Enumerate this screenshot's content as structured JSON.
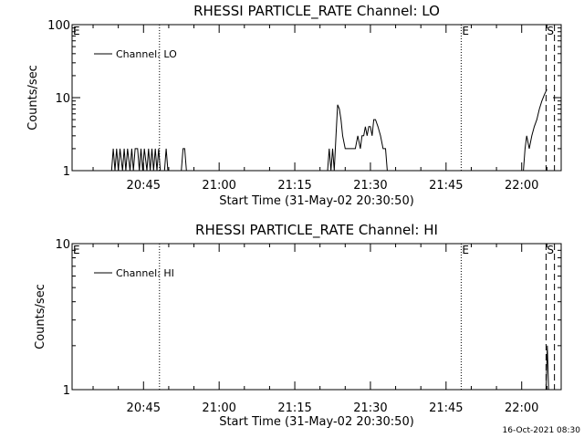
{
  "timestamp": "16-Oct-2021 08:30",
  "chart_data": [
    {
      "type": "line",
      "title": "RHESSI PARTICLE_RATE Channel: LO",
      "xlabel": "Start Time (31-May-02 20:30:50)",
      "ylabel": "Counts/sec",
      "yscale": "log",
      "ylim": [
        1,
        100
      ],
      "xlim": [
        "20:30:50",
        "22:07:50"
      ],
      "x_ticks": [
        "20:45",
        "21:00",
        "21:15",
        "21:30",
        "21:45",
        "22:00"
      ],
      "y_ticks": [
        "1",
        "10",
        "100"
      ],
      "legend": "Channel: LO",
      "legend_position": "top-left",
      "markers": [
        {
          "label": "E",
          "time": "20:30:50",
          "style": "none"
        },
        {
          "label": "",
          "time": "20:48:10",
          "style": "dotted"
        },
        {
          "label": "E",
          "time": "21:48:00",
          "style": "dotted"
        },
        {
          "label": "S",
          "time": "22:04:50",
          "style": "dashed"
        },
        {
          "label": "",
          "time": "22:06:30",
          "style": "dashed"
        }
      ],
      "series": [
        {
          "values": [
            [
              "20:38:40",
              1
            ],
            [
              "20:39:00",
              2
            ],
            [
              "20:39:20",
              1
            ],
            [
              "20:39:40",
              2
            ],
            [
              "20:40:00",
              1
            ],
            [
              "20:40:20",
              2
            ],
            [
              "20:40:50",
              1
            ],
            [
              "20:41:10",
              2
            ],
            [
              "20:41:30",
              1
            ],
            [
              "20:41:50",
              2
            ],
            [
              "20:42:20",
              1
            ],
            [
              "20:42:40",
              2
            ],
            [
              "20:43:00",
              1
            ],
            [
              "20:43:20",
              2
            ],
            [
              "20:43:50",
              2
            ],
            [
              "20:44:10",
              1
            ],
            [
              "20:44:30",
              2
            ],
            [
              "20:44:50",
              1
            ],
            [
              "20:45:10",
              2
            ],
            [
              "20:45:40",
              1
            ],
            [
              "20:46:00",
              2
            ],
            [
              "20:46:20",
              1
            ],
            [
              "20:46:40",
              2
            ],
            [
              "20:47:00",
              1
            ],
            [
              "20:47:20",
              2
            ],
            [
              "20:47:40",
              1
            ],
            [
              "20:48:00",
              2
            ],
            [
              "20:48:20",
              1
            ],
            [
              "20:49:10",
              1
            ],
            [
              "20:49:30",
              2
            ],
            [
              "20:49:50",
              1
            ],
            [
              "20:52:30",
              1
            ],
            [
              "20:52:50",
              2
            ],
            [
              "20:53:10",
              2
            ],
            [
              "20:53:30",
              1
            ],
            [
              "21:21:30",
              1
            ],
            [
              "21:21:50",
              2
            ],
            [
              "21:22:10",
              1
            ],
            [
              "21:22:30",
              2
            ],
            [
              "21:22:50",
              1
            ],
            [
              "21:23:10",
              3
            ],
            [
              "21:23:30",
              8
            ],
            [
              "21:23:50",
              7
            ],
            [
              "21:24:10",
              5
            ],
            [
              "21:24:30",
              3
            ],
            [
              "21:25:00",
              2
            ],
            [
              "21:26:00",
              2
            ],
            [
              "21:27:00",
              2
            ],
            [
              "21:27:30",
              3
            ],
            [
              "21:28:00",
              2
            ],
            [
              "21:28:20",
              3
            ],
            [
              "21:28:40",
              3
            ],
            [
              "21:29:00",
              4
            ],
            [
              "21:29:20",
              3
            ],
            [
              "21:29:40",
              4
            ],
            [
              "21:30:00",
              4
            ],
            [
              "21:30:20",
              3
            ],
            [
              "21:30:40",
              5
            ],
            [
              "21:31:00",
              5
            ],
            [
              "21:31:30",
              4
            ],
            [
              "21:32:00",
              3
            ],
            [
              "21:32:30",
              2
            ],
            [
              "21:33:00",
              2
            ],
            [
              "21:33:20",
              1
            ],
            [
              "22:00:20",
              1
            ],
            [
              "22:00:40",
              2
            ],
            [
              "22:01:00",
              3
            ],
            [
              "22:01:30",
              2
            ],
            [
              "22:02:00",
              3
            ],
            [
              "22:02:30",
              4
            ],
            [
              "22:03:00",
              5
            ],
            [
              "22:03:30",
              7
            ],
            [
              "22:04:00",
              9
            ],
            [
              "22:04:30",
              11
            ],
            [
              "22:05:00",
              13
            ]
          ]
        }
      ]
    },
    {
      "type": "line",
      "title": "RHESSI PARTICLE_RATE Channel: HI",
      "xlabel": "Start Time (31-May-02 20:30:50)",
      "ylabel": "Counts/sec",
      "yscale": "log",
      "ylim": [
        1,
        10
      ],
      "xlim": [
        "20:30:50",
        "22:07:50"
      ],
      "x_ticks": [
        "20:45",
        "21:00",
        "21:15",
        "21:30",
        "21:45",
        "22:00"
      ],
      "y_ticks": [
        "1",
        "10"
      ],
      "legend": "Channel: HI",
      "legend_position": "top-left",
      "markers": [
        {
          "label": "E",
          "time": "20:30:50",
          "style": "none"
        },
        {
          "label": "",
          "time": "20:48:10",
          "style": "dotted"
        },
        {
          "label": "E",
          "time": "21:48:00",
          "style": "dotted"
        },
        {
          "label": "S",
          "time": "22:04:50",
          "style": "dashed"
        },
        {
          "label": "",
          "time": "22:06:30",
          "style": "dashed"
        }
      ],
      "series": [
        {
          "values": [
            [
              "22:04:50",
              1
            ],
            [
              "22:05:05",
              2
            ],
            [
              "22:05:20",
              1
            ]
          ]
        }
      ]
    }
  ]
}
